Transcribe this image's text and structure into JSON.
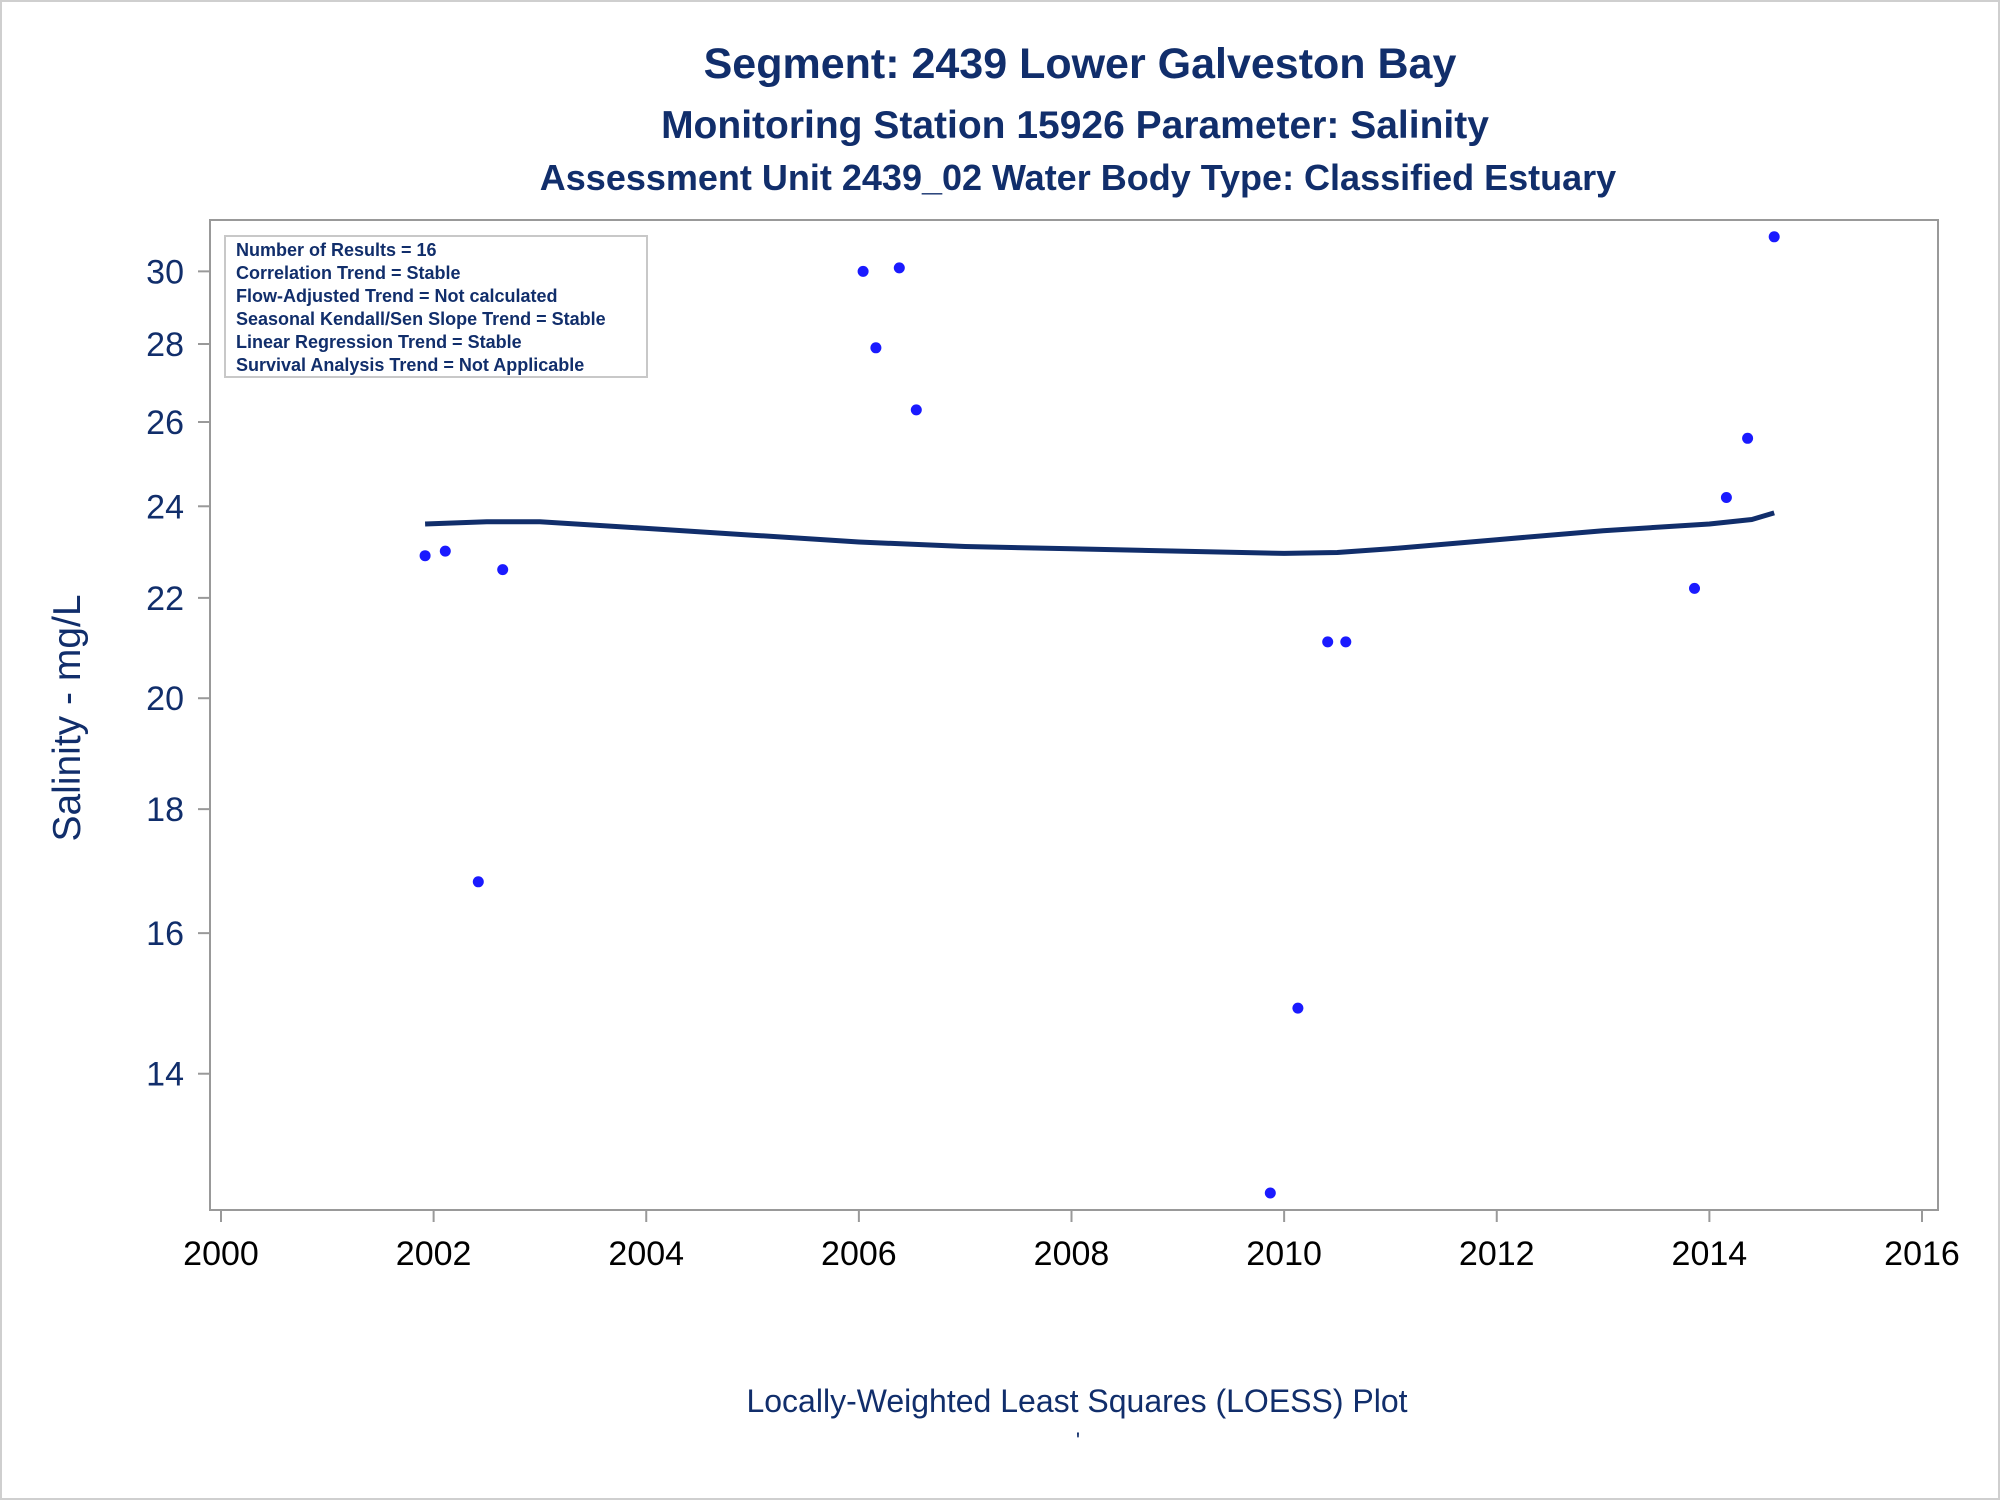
{
  "header": {
    "title": "Segment: 2439  Lower Galveston Bay",
    "subtitle1": "Monitoring Station 15926 Parameter: Salinity",
    "subtitle2": "Assessment Unit 2439_02   Water Body Type: Classified Estuary"
  },
  "stats_box": {
    "lines": [
      "Number of Results = 16",
      "Correlation Trend = Stable",
      "Flow-Adjusted Trend = Not calculated",
      "Seasonal Kendall/Sen Slope Trend = Stable",
      "Linear Regression Trend = Stable",
      "Survival Analysis Trend = Not Applicable"
    ]
  },
  "footer": {
    "caption": "Locally-Weighted Least Squares (LOESS) Plot",
    "tick_mark": "'"
  },
  "chart_data": {
    "type": "scatter",
    "title": "Segment: 2439  Lower Galveston Bay",
    "xlabel": "",
    "ylabel": "Salinity - mg/L",
    "y_scale": "log",
    "xlim": [
      2000,
      2016
    ],
    "ylim": [
      12.3,
      31.5
    ],
    "x_ticks": [
      2000,
      2002,
      2004,
      2006,
      2008,
      2010,
      2012,
      2014,
      2016
    ],
    "y_ticks": [
      14,
      16,
      18,
      20,
      22,
      24,
      26,
      28,
      30
    ],
    "grid": false,
    "colors": {
      "points": "#1a1aff",
      "loess": "#112e6b",
      "text": "#112e6b",
      "axis": "#999999"
    },
    "series": [
      {
        "type": "scatter",
        "x": [
          2001.92,
          2002.11,
          2002.42,
          2002.65,
          2006.04,
          2006.16,
          2006.38,
          2006.54,
          2009.87,
          2010.13,
          2010.41,
          2010.58,
          2013.86,
          2014.16,
          2014.36,
          2014.61
        ],
        "y": [
          22.9,
          23.0,
          16.8,
          22.6,
          30.0,
          27.9,
          30.1,
          26.3,
          12.5,
          14.9,
          21.1,
          21.1,
          22.2,
          24.2,
          25.6,
          31.0
        ]
      },
      {
        "type": "line",
        "x": [
          2001.92,
          2002.5,
          2003.0,
          2004.0,
          2005.0,
          2006.0,
          2007.0,
          2008.0,
          2009.0,
          2010.0,
          2010.5,
          2011.0,
          2012.0,
          2013.0,
          2014.0,
          2014.4,
          2014.61
        ],
        "y": [
          23.6,
          23.65,
          23.65,
          23.5,
          23.35,
          23.2,
          23.1,
          23.05,
          23.0,
          22.95,
          22.97,
          23.05,
          23.25,
          23.45,
          23.6,
          23.7,
          23.85
        ]
      }
    ]
  }
}
